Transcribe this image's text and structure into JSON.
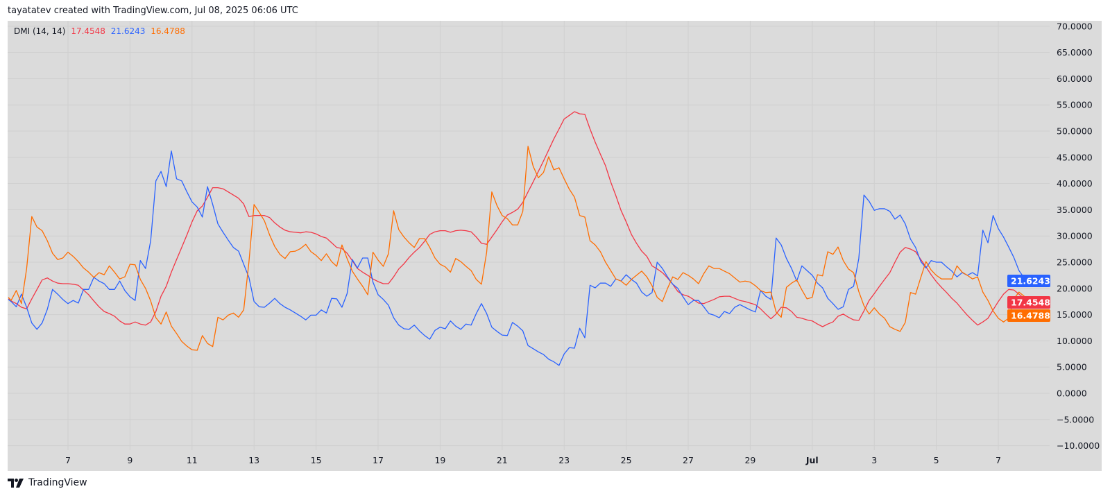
{
  "header": {
    "attribution": "tayatatev created with TradingView.com, Jul 08, 2025 06:06 UTC"
  },
  "legend": {
    "indicator": "DMI (14, 14)",
    "values": [
      "17.4548",
      "21.6243",
      "16.4788"
    ]
  },
  "logo": {
    "text": "TradingView",
    "icon": "tradingview-logo-icon"
  },
  "colors": {
    "background": "#dbdbdb",
    "grid": "#cfcfcf",
    "red": "#f23645",
    "blue": "#2962ff",
    "orange": "#ff6d00"
  },
  "chart_data": {
    "type": "line",
    "title": "DMI (14, 14)",
    "xlabel": "",
    "ylabel": "",
    "ylim": [
      -10,
      70
    ],
    "grid": true,
    "legend": "top-left",
    "y_ticks": [
      "70.0000",
      "65.0000",
      "60.0000",
      "55.0000",
      "50.0000",
      "45.0000",
      "40.0000",
      "35.0000",
      "30.0000",
      "25.0000",
      "20.0000",
      "15.0000",
      "10.0000",
      "5.0000",
      "0.0000",
      "−5.0000",
      "−10.0000"
    ],
    "y_tick_values": [
      70,
      65,
      60,
      55,
      50,
      45,
      40,
      35,
      30,
      25,
      20,
      15,
      10,
      5,
      0,
      -5,
      -10
    ],
    "x_ticks": [
      {
        "label": "7",
        "date": "2025-06-07"
      },
      {
        "label": "9",
        "date": "2025-06-09"
      },
      {
        "label": "11",
        "date": "2025-06-11"
      },
      {
        "label": "13",
        "date": "2025-06-13"
      },
      {
        "label": "15",
        "date": "2025-06-15"
      },
      {
        "label": "17",
        "date": "2025-06-17"
      },
      {
        "label": "19",
        "date": "2025-06-19"
      },
      {
        "label": "21",
        "date": "2025-06-21"
      },
      {
        "label": "23",
        "date": "2025-06-23"
      },
      {
        "label": "25",
        "date": "2025-06-25"
      },
      {
        "label": "27",
        "date": "2025-06-27"
      },
      {
        "label": "29",
        "date": "2025-06-29"
      },
      {
        "label": "Jul",
        "date": "2025-07-01"
      },
      {
        "label": "3",
        "date": "2025-07-03"
      },
      {
        "label": "5",
        "date": "2025-07-05"
      },
      {
        "label": "7",
        "date": "2025-07-07"
      }
    ],
    "x_start": "2025-06-05 00:00",
    "x_interval": "4h",
    "last_values": [
      "21.6243",
      "17.4548",
      "16.4788"
    ],
    "series": [
      {
        "color": "#f23645",
        "last": "17.4548",
        "values": [
          18.0,
          17.6,
          17.1,
          16.4,
          16.1,
          18.0,
          19.8,
          21.6,
          22.0,
          21.4,
          21.0,
          20.9,
          20.9,
          20.8,
          20.6,
          19.7,
          18.8,
          17.6,
          16.5,
          15.6,
          15.2,
          14.7,
          13.8,
          13.2,
          13.2,
          13.6,
          13.2,
          13.0,
          13.6,
          15.6,
          18.5,
          20.4,
          23.1,
          25.5,
          27.8,
          30.2,
          32.7,
          34.8,
          35.7,
          37.4,
          39.2,
          39.2,
          39.0,
          38.4,
          37.8,
          37.2,
          36.1,
          33.7,
          33.9,
          33.9,
          33.9,
          33.5,
          32.5,
          31.7,
          31.1,
          30.8,
          30.7,
          30.6,
          30.8,
          30.7,
          30.4,
          29.9,
          29.6,
          28.7,
          27.8,
          27.6,
          26.7,
          25.3,
          23.8,
          23.1,
          22.5,
          21.8,
          21.3,
          20.9,
          20.9,
          22.2,
          23.7,
          24.7,
          25.9,
          26.9,
          27.8,
          29.0,
          30.3,
          30.8,
          31.0,
          31.0,
          30.7,
          31.0,
          31.1,
          31.0,
          30.8,
          29.8,
          28.6,
          28.4,
          29.8,
          31.2,
          32.7,
          34.0,
          34.5,
          35.1,
          36.4,
          38.4,
          40.3,
          42.3,
          44.3,
          46.4,
          48.5,
          50.4,
          52.3,
          53.0,
          53.7,
          53.3,
          53.2,
          50.4,
          47.9,
          45.6,
          43.4,
          40.3,
          37.7,
          34.9,
          32.7,
          30.3,
          28.6,
          27.1,
          26.1,
          24.3,
          23.7,
          23.0,
          22.0,
          20.8,
          19.4,
          18.8,
          18.5,
          17.9,
          17.2,
          17.1,
          17.5,
          17.9,
          18.4,
          18.5,
          18.5,
          18.1,
          17.7,
          17.5,
          17.2,
          16.9,
          16.1,
          15.1,
          14.2,
          15.1,
          16.4,
          16.3,
          15.6,
          14.5,
          14.3,
          14.0,
          13.8,
          13.2,
          12.7,
          13.2,
          13.6,
          14.7,
          15.1,
          14.5,
          14.0,
          13.9,
          15.7,
          17.7,
          19.0,
          20.4,
          21.7,
          23.0,
          25.0,
          26.9,
          27.8,
          27.5,
          27.0,
          25.5,
          24.1,
          22.6,
          21.3,
          20.2,
          19.2,
          18.1,
          17.2,
          16.0,
          14.9,
          13.9,
          13.0,
          13.6,
          14.3,
          15.9,
          17.5,
          18.9,
          19.8,
          19.7,
          18.9,
          18.1,
          17.7,
          17.4548
        ]
      },
      {
        "color": "#2962ff",
        "last": "21.6243",
        "values": [
          17.9,
          17.5,
          16.5,
          18.9,
          16.4,
          13.4,
          12.2,
          13.4,
          16.0,
          19.8,
          18.9,
          17.9,
          17.1,
          17.7,
          17.2,
          19.8,
          19.8,
          22.1,
          21.4,
          20.9,
          19.8,
          19.8,
          21.4,
          19.6,
          18.4,
          17.7,
          25.3,
          23.8,
          29.1,
          40.5,
          42.3,
          39.4,
          46.2,
          40.9,
          40.5,
          38.4,
          36.5,
          35.5,
          33.6,
          39.4,
          36.0,
          32.3,
          30.7,
          29.2,
          27.8,
          27.1,
          24.6,
          22.1,
          17.5,
          16.5,
          16.4,
          17.2,
          18.1,
          17.1,
          16.4,
          15.9,
          15.3,
          14.7,
          14.0,
          14.9,
          14.9,
          15.9,
          15.3,
          18.1,
          18.0,
          16.4,
          19.0,
          25.5,
          23.9,
          25.8,
          25.8,
          21.2,
          18.8,
          17.9,
          16.8,
          14.4,
          13.0,
          12.3,
          12.2,
          13.0,
          11.9,
          11.0,
          10.3,
          12.0,
          12.6,
          12.3,
          13.8,
          12.8,
          12.2,
          13.2,
          13.0,
          15.2,
          17.1,
          15.2,
          12.6,
          11.8,
          11.1,
          11.0,
          13.5,
          12.8,
          11.9,
          9.1,
          8.5,
          7.9,
          7.4,
          6.5,
          6.0,
          5.3,
          7.5,
          8.7,
          8.6,
          12.4,
          10.6,
          20.6,
          20.1,
          21.0,
          21.0,
          20.4,
          21.8,
          21.4,
          22.6,
          21.7,
          21.0,
          19.3,
          18.5,
          19.2,
          25.0,
          23.8,
          22.2,
          20.8,
          20.0,
          18.4,
          16.9,
          17.7,
          17.7,
          16.5,
          15.2,
          14.9,
          14.4,
          15.6,
          15.2,
          16.4,
          16.9,
          16.4,
          15.9,
          15.5,
          19.6,
          18.5,
          17.9,
          29.6,
          28.3,
          25.7,
          23.8,
          21.4,
          24.3,
          23.4,
          22.5,
          21.0,
          20.1,
          18.1,
          17.1,
          16.0,
          16.5,
          19.8,
          20.4,
          25.7,
          37.8,
          36.6,
          34.9,
          35.2,
          35.2,
          34.7,
          33.2,
          34.0,
          32.3,
          29.4,
          27.8,
          25.1,
          23.9,
          25.3,
          25.0,
          25.0,
          24.1,
          23.3,
          22.2,
          23.0,
          22.5,
          23.0,
          22.4,
          31.1,
          28.7,
          33.9,
          31.4,
          29.8,
          27.9,
          25.9,
          23.4,
          22.0,
          22.5,
          21.6243
        ]
      },
      {
        "color": "#ff6d00",
        "last": "16.4788",
        "values": [
          18.3,
          17.7,
          19.6,
          17.1,
          23.8,
          33.7,
          31.7,
          31.0,
          29.1,
          26.7,
          25.5,
          25.8,
          26.9,
          26.1,
          25.1,
          23.9,
          23.1,
          22.1,
          23.0,
          22.6,
          24.3,
          23.1,
          21.8,
          22.2,
          24.6,
          24.5,
          21.7,
          20.0,
          17.6,
          14.4,
          13.2,
          15.5,
          12.8,
          11.4,
          9.9,
          9.0,
          8.3,
          8.2,
          11.0,
          9.5,
          8.9,
          14.5,
          14.0,
          14.9,
          15.3,
          14.5,
          15.9,
          25.0,
          36.0,
          34.5,
          32.9,
          30.2,
          28.0,
          26.5,
          25.7,
          27.0,
          27.1,
          27.6,
          28.4,
          27.0,
          26.3,
          25.3,
          26.6,
          25.1,
          24.2,
          28.3,
          25.7,
          23.3,
          21.8,
          20.4,
          18.8,
          26.9,
          25.4,
          24.2,
          26.6,
          34.8,
          31.2,
          29.8,
          28.7,
          27.8,
          29.5,
          29.5,
          27.8,
          25.8,
          24.6,
          24.1,
          23.1,
          25.7,
          25.1,
          24.2,
          23.4,
          21.7,
          20.8,
          26.9,
          38.4,
          35.8,
          33.9,
          33.3,
          32.1,
          32.1,
          34.7,
          47.1,
          43.3,
          41.1,
          42.1,
          45.1,
          42.6,
          43.0,
          40.9,
          38.9,
          37.4,
          33.9,
          33.6,
          29.1,
          28.3,
          27.0,
          25.0,
          23.4,
          21.8,
          21.4,
          20.6,
          21.7,
          22.5,
          23.3,
          22.2,
          20.5,
          18.3,
          17.5,
          20.0,
          22.2,
          21.7,
          23.0,
          22.5,
          21.8,
          20.9,
          22.8,
          24.3,
          23.8,
          23.8,
          23.3,
          22.8,
          22.0,
          21.2,
          21.4,
          21.2,
          20.5,
          19.6,
          19.2,
          19.3,
          15.5,
          14.5,
          20.2,
          21.0,
          21.6,
          19.7,
          18.0,
          18.3,
          22.6,
          22.4,
          27.0,
          26.5,
          27.9,
          25.3,
          23.7,
          23.0,
          19.4,
          16.7,
          15.1,
          16.3,
          15.1,
          14.3,
          12.7,
          12.2,
          11.8,
          13.5,
          19.2,
          18.9,
          22.1,
          25.1,
          23.5,
          22.5,
          21.8,
          21.8,
          21.8,
          24.3,
          23.1,
          22.5,
          21.8,
          22.2,
          19.3,
          17.7,
          15.7,
          14.3,
          13.6,
          14.3,
          18.0,
          19.3,
          18.5,
          17.6,
          16.4788
        ]
      }
    ]
  }
}
